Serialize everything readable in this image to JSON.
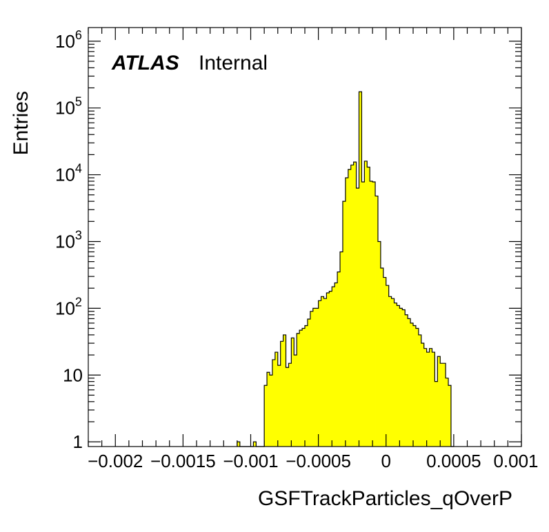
{
  "chart_data": {
    "type": "bar",
    "histogram": true,
    "title": "",
    "xlabel": "GSFTrackParticles_qOverP",
    "ylabel": "Entries",
    "x_range": [
      -0.0022,
      0.001
    ],
    "y_range": [
      0.85,
      1600000
    ],
    "y_scale": "log",
    "grid": false,
    "fill_color": "#ffff00",
    "line_color": "#000000",
    "x_ticks": [
      {
        "value": -0.002,
        "label": "−0.002"
      },
      {
        "value": -0.0015,
        "label": "−0.0015"
      },
      {
        "value": -0.001,
        "label": "−0.001"
      },
      {
        "value": -0.0005,
        "label": "−0.0005"
      },
      {
        "value": 0,
        "label": "0"
      },
      {
        "value": 0.0005,
        "label": "0.0005"
      },
      {
        "value": 0.001,
        "label": "0.001"
      }
    ],
    "y_ticks": [
      {
        "value": 1,
        "base": "1",
        "exp": ""
      },
      {
        "value": 10,
        "base": "10",
        "exp": ""
      },
      {
        "value": 100,
        "base": "10",
        "exp": "2"
      },
      {
        "value": 1000,
        "base": "10",
        "exp": "3"
      },
      {
        "value": 10000,
        "base": "10",
        "exp": "4"
      },
      {
        "value": 100000,
        "base": "10",
        "exp": "5"
      },
      {
        "value": 1000000,
        "base": "10",
        "exp": "6"
      }
    ],
    "bin_edges_start": -0.0011,
    "bin_width": 2e-05,
    "counts": [
      1,
      0,
      0,
      0,
      0,
      0,
      1,
      0,
      0,
      0,
      7,
      11,
      10,
      17,
      22,
      14,
      32,
      40,
      13,
      15,
      36,
      20,
      42,
      47,
      50,
      55,
      69,
      90,
      100,
      100,
      130,
      150,
      140,
      170,
      180,
      210,
      240,
      350,
      700,
      4000,
      9000,
      12000,
      14000,
      15500,
      6300,
      175000,
      7800,
      16000,
      13000,
      8000,
      7800,
      4800,
      1000,
      400,
      290,
      220,
      150,
      140,
      120,
      110,
      100,
      95,
      80,
      70,
      60,
      55,
      50,
      40,
      30,
      25,
      22,
      25,
      22,
      8,
      19,
      15,
      15,
      9,
      7,
      0
    ],
    "annotations": {
      "experiment": "ATLAS",
      "status": "Internal"
    }
  }
}
